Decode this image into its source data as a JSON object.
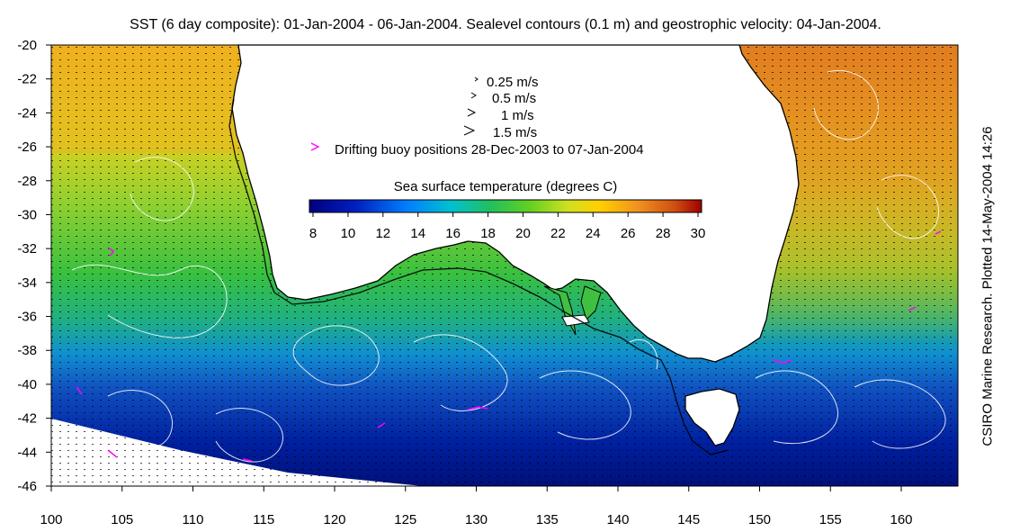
{
  "title": "SST (6 day composite): 01-Jan-2004 - 06-Jan-2004. Sealevel contours (0.1 m) and geostrophic velocity: 04-Jan-2004.",
  "side_note": "CSIRO Marine Research. Plotted 14-May-2004 14:26",
  "axes": {
    "x_ticks": [
      "100",
      "105",
      "110",
      "115",
      "120",
      "125",
      "130",
      "135",
      "140",
      "145",
      "150",
      "155",
      "160"
    ],
    "y_ticks": [
      "-20",
      "-22",
      "-24",
      "-26",
      "-28",
      "-30",
      "-32",
      "-34",
      "-36",
      "-38",
      "-40",
      "-42",
      "-44",
      "-46"
    ]
  },
  "legend": {
    "vectors": [
      {
        "label": "0.25 m/s"
      },
      {
        "label": "0.5 m/s"
      },
      {
        "label": "1 m/s"
      },
      {
        "label": "1.5 m/s"
      }
    ],
    "buoy_label": "Drifting buoy positions 28-Dec-2003 to 07-Jan-2004",
    "colorbar_title": "Sea surface temperature (degrees C)",
    "colorbar_ticks": [
      "8",
      "10",
      "12",
      "14",
      "16",
      "18",
      "20",
      "22",
      "24",
      "26",
      "28",
      "30"
    ]
  },
  "colors": {
    "land": "#ffffff",
    "coastline": "#000000",
    "contours": "#ffffff",
    "buoy": "#ff00ff",
    "sst_cold": "#00007f",
    "sst_mid": "#33cc33",
    "sst_warm": "#e08020"
  }
}
